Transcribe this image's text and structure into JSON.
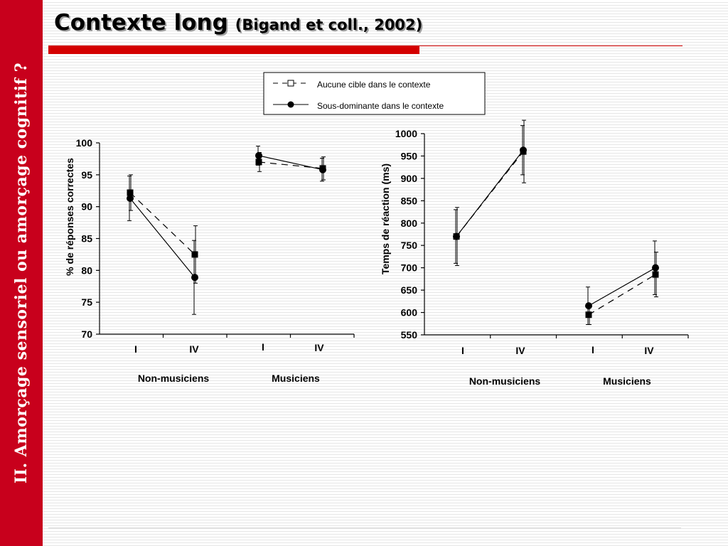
{
  "sidebar": {
    "text": "II. Amorçage sensoriel ou amorçage cognitif ?"
  },
  "title": {
    "main": "Contexte long",
    "citation": "(Bigand et coll., 2002)"
  },
  "legend": {
    "items": [
      {
        "label": "Aucune cible dans le contexte",
        "marker": "open-square",
        "line": "dashed"
      },
      {
        "label": "Sous-dominante dans le contexte",
        "marker": "filled-circle",
        "line": "solid"
      }
    ]
  },
  "colors": {
    "accent": "#c8001c",
    "title_bar": "#d40000"
  },
  "chart_data": [
    {
      "type": "line",
      "ylabel": "% de réponses correctes",
      "ylim": [
        70,
        100
      ],
      "yticks": [
        70,
        75,
        80,
        85,
        90,
        95,
        100
      ],
      "groups": [
        {
          "name": "Non-musiciens",
          "categories": [
            "I",
            "IV"
          ]
        },
        {
          "name": "Musiciens",
          "categories": [
            "I",
            "IV"
          ]
        }
      ],
      "series": [
        {
          "name": "Aucune cible dans le contexte",
          "style": "dashed-square",
          "values": [
            [
              92.2,
              82.5
            ],
            [
              97.0,
              96.0
            ]
          ],
          "error": [
            [
              2.8,
              4.5
            ],
            [
              1.5,
              1.8
            ]
          ]
        },
        {
          "name": "Sous-dominante dans le contexte",
          "style": "solid-circle",
          "values": [
            [
              91.3,
              78.9
            ],
            [
              98.0,
              95.8
            ]
          ],
          "error": [
            [
              3.5,
              5.8
            ],
            [
              1.5,
              1.8
            ]
          ]
        }
      ]
    },
    {
      "type": "line",
      "ylabel": "Temps de réaction  (ms)",
      "ylim": [
        550,
        1000
      ],
      "yticks": [
        550,
        600,
        650,
        700,
        750,
        800,
        850,
        900,
        950,
        1000
      ],
      "groups": [
        {
          "name": "Non-musiciens",
          "categories": [
            "I",
            "IV"
          ]
        },
        {
          "name": "Musiciens",
          "categories": [
            "I",
            "IV"
          ]
        }
      ],
      "series": [
        {
          "name": "Aucune cible dans le contexte",
          "style": "dashed-square",
          "values": [
            [
              770,
              960
            ],
            [
              595,
              685
            ]
          ],
          "error": [
            [
              65,
              70
            ],
            [
              22,
              50
            ]
          ]
        },
        {
          "name": "Sous-dominante dans le contexte",
          "style": "solid-circle",
          "values": [
            [
              770,
              963
            ],
            [
              615,
              700
            ]
          ],
          "error": [
            [
              60,
              55
            ],
            [
              42,
              60
            ]
          ]
        }
      ]
    }
  ]
}
